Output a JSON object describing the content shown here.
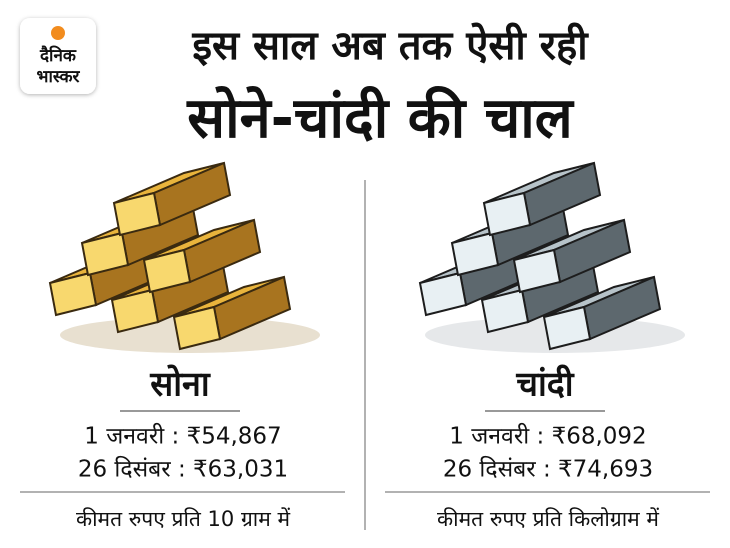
{
  "logo": {
    "line1": "दैनिक",
    "line2": "भास्कर"
  },
  "title": {
    "line1": "इस साल अब तक ऐसी रही",
    "line2": "सोने-चांदी की चाल"
  },
  "panels": [
    {
      "name": "सोना",
      "rows": [
        "1 जनवरी : ₹54,867",
        "26 दिसंबर : ₹63,031"
      ],
      "note": "कीमत रुपए प्रति 10 ग्राम में"
    },
    {
      "name": "चांदी",
      "rows": [
        "1 जनवरी : ₹68,092",
        "26 दिसंबर : ₹74,693"
      ],
      "note": "कीमत रुपए प्रति किलोग्राम में"
    }
  ]
}
